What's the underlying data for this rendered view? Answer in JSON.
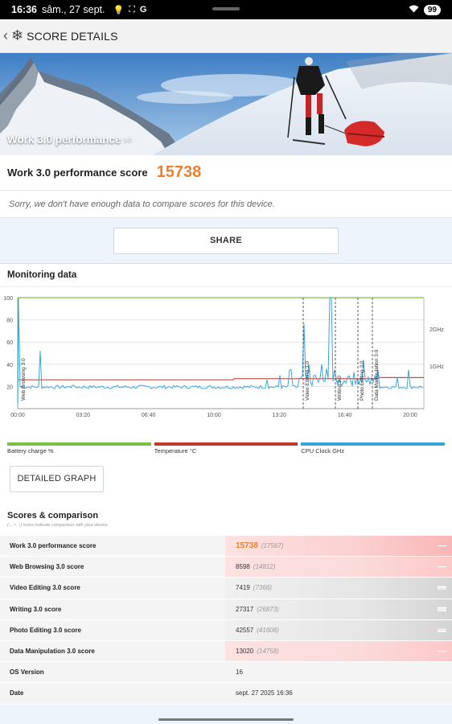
{
  "status": {
    "time": "16:36",
    "date": "sâm., 27 sept.",
    "icons_left": [
      "bulb-icon",
      "scan-icon",
      "g-icon"
    ],
    "battery": "99"
  },
  "appbar": {
    "title": "SCORE DETAILS"
  },
  "hero": {
    "title": "Work 3.0 performance",
    "version": "3.0"
  },
  "score": {
    "label": "Work 3.0 performance score",
    "value": "15738"
  },
  "sorry": "Sorry, we don't have enough data to compare scores for this device.",
  "share_label": "SHARE",
  "monitoring": {
    "title": "Monitoring data",
    "legend": [
      {
        "label": "Battery charge %",
        "color": "#7ac143"
      },
      {
        "label": "Temperature °C",
        "color": "#c0392b"
      },
      {
        "label": "CPU Clock GHz",
        "color": "#3aa6d8"
      }
    ]
  },
  "chart_data": {
    "type": "line",
    "x_ticks": [
      "00:00",
      "03:20",
      "06:40",
      "10:00",
      "13:20",
      "16:40",
      "20:00"
    ],
    "y_left_ticks": [
      "20",
      "40",
      "60",
      "80",
      "100"
    ],
    "y_left_range": [
      0,
      100
    ],
    "y_right_ticks": [
      "1GHz",
      "2GHz"
    ],
    "markers": [
      "Web Browsing 3.0",
      "Video Editing 3.0",
      "Writing 3.0",
      "Photo Editing 3.0",
      "Data Manipulation 3.0"
    ],
    "series": [
      {
        "name": "Battery charge %",
        "color": "#7ac143"
      },
      {
        "name": "Temperature °C",
        "color": "#c0392b"
      },
      {
        "name": "CPU Clock GHz",
        "color": "#3aa6d8"
      }
    ]
  },
  "detailed_graph_label": "DETAILED GRAPH",
  "scores": {
    "title": "Scores & comparison",
    "note": "(↓, ≈, ↑) Icons indicate comparison with your device.",
    "rows": [
      {
        "name": "Work 3.0 performance score",
        "value": "15738",
        "avg": "(17567)",
        "style": "red",
        "highlight": true
      },
      {
        "name": "Web Browsing 3.0 score",
        "value": "8598",
        "avg": "(14812)",
        "style": "red"
      },
      {
        "name": "Video Editing 3.0 score",
        "value": "7419",
        "avg": "(7366)",
        "style": "grey"
      },
      {
        "name": "Writing 3.0 score",
        "value": "27317",
        "avg": "(26873)",
        "style": "grey"
      },
      {
        "name": "Photo Editing 3.0 score",
        "value": "42557",
        "avg": "(41606)",
        "style": "grey"
      },
      {
        "name": "Data Manipulation 3.0 score",
        "value": "13020",
        "avg": "(14758)",
        "style": "red"
      },
      {
        "name": "OS Version",
        "value": "16",
        "avg": "",
        "style": "none"
      },
      {
        "name": "Date",
        "value": "sept. 27 2025 16:36",
        "avg": "",
        "style": "none"
      }
    ]
  }
}
